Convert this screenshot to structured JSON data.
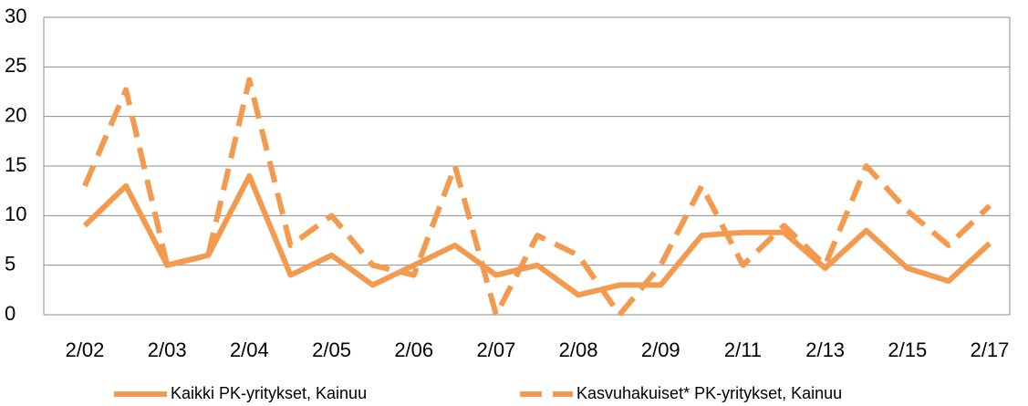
{
  "chart_data": {
    "type": "line",
    "categories": [
      "2/02",
      null,
      "2/03",
      null,
      "2/04",
      null,
      "2/05",
      null,
      "2/06",
      null,
      "2/07",
      null,
      "2/08",
      null,
      "2/09",
      null,
      "2/11",
      null,
      "2/13",
      null,
      "2/15",
      null,
      "2/17"
    ],
    "series": [
      {
        "name": "Kaikki PK-yritykset, Kainuu",
        "color": "#f39a4e",
        "line_style": "solid",
        "values": [
          9,
          13,
          5,
          6,
          14,
          4,
          6,
          3,
          5,
          7,
          4,
          5,
          2,
          3,
          3,
          8,
          8.3,
          8.3,
          4.7,
          8.5,
          4.7,
          3.4,
          7.2
        ]
      },
      {
        "name": "Kasvuhakuiset* PK-yritykset, Kainuu",
        "color": "#f39a4e",
        "line_style": "dashed",
        "values": [
          13,
          22.7,
          5,
          6,
          23.7,
          7,
          10,
          5,
          4,
          15,
          0,
          8,
          6,
          0,
          5,
          13,
          5,
          9,
          5,
          15,
          10.5,
          7,
          11
        ]
      }
    ],
    "ylim": [
      0,
      30
    ],
    "yticks": [
      0,
      5,
      10,
      15,
      20,
      25,
      30
    ],
    "grid": true,
    "legend": "bottom"
  }
}
